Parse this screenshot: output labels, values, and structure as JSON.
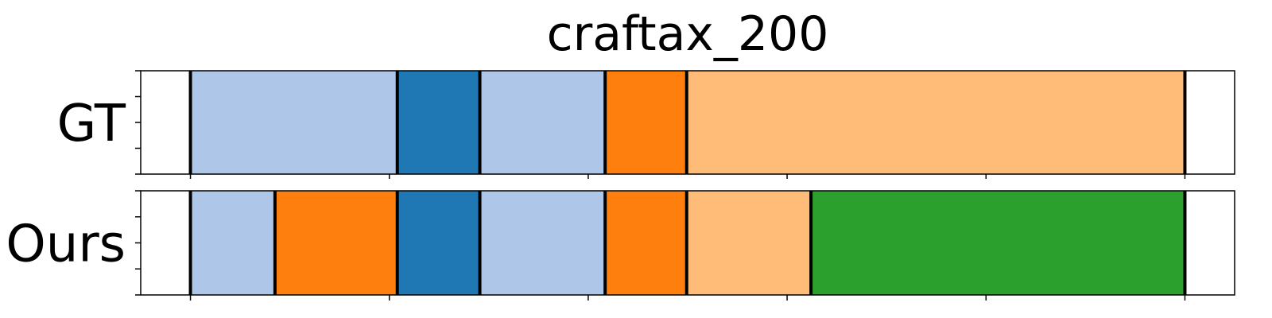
{
  "chart_data": {
    "type": "bar",
    "title": "craftax_200",
    "xlim": [
      0,
      1100
    ],
    "boundary_color": "#000000",
    "rows": [
      {
        "label": "GT",
        "segments": [
          {
            "start": 50,
            "end": 258,
            "color": "#aec7e8"
          },
          {
            "start": 258,
            "end": 341,
            "color": "#1f77b4"
          },
          {
            "start": 341,
            "end": 467,
            "color": "#aec7e8"
          },
          {
            "start": 467,
            "end": 549,
            "color": "#ff7f0e"
          },
          {
            "start": 549,
            "end": 1050,
            "color": "#ffbb78"
          }
        ]
      },
      {
        "label": "Ours",
        "segments": [
          {
            "start": 50,
            "end": 135,
            "color": "#aec7e8"
          },
          {
            "start": 135,
            "end": 258,
            "color": "#ff7f0e"
          },
          {
            "start": 258,
            "end": 341,
            "color": "#1f77b4"
          },
          {
            "start": 341,
            "end": 467,
            "color": "#aec7e8"
          },
          {
            "start": 467,
            "end": 549,
            "color": "#ff7f0e"
          },
          {
            "start": 549,
            "end": 674,
            "color": "#ffbb78"
          },
          {
            "start": 674,
            "end": 1050,
            "color": "#2ca02c"
          }
        ]
      }
    ],
    "x_ticks": [
      50,
      250,
      450,
      650,
      850,
      1050
    ],
    "x_tick_labels_visible": false,
    "y_ticks_per_row": 5,
    "grid": false,
    "legend": "none"
  }
}
